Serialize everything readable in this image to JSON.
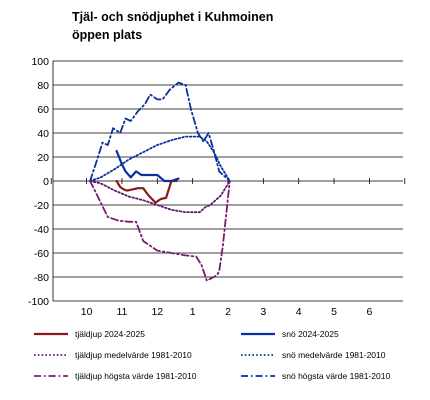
{
  "chart_data": {
    "type": "line",
    "title": [
      "Tjäl- och snödjuphet i Kuhmoinen",
      "öppen plats"
    ],
    "xlabel": "",
    "ylabel": "",
    "x_ticks": [
      "10",
      "11",
      "12",
      "1",
      "2",
      "3",
      "4",
      "5",
      "6"
    ],
    "ylim": [
      -100,
      100
    ],
    "y_ticks": [
      100,
      80,
      60,
      40,
      20,
      0,
      -20,
      -40,
      -60,
      -80,
      -100
    ],
    "grid": true,
    "legend_position": "bottom",
    "series": [
      {
        "name": "tjäldjup 2024-2025",
        "color": "#8B1A1A",
        "style": "solid",
        "x": [
          2.85,
          2.95,
          3.05,
          3.15,
          3.3,
          3.45,
          3.6,
          3.75,
          3.95,
          4.1,
          4.25,
          4.4,
          4.55
        ],
        "y": [
          0,
          -5,
          -7,
          -8,
          -7,
          -6,
          -6,
          -12,
          -18,
          -15,
          -14,
          0,
          0
        ]
      },
      {
        "name": "snö 2024-2025",
        "color": "#0a2fa0",
        "style": "solid",
        "x": [
          2.85,
          3.0,
          3.1,
          3.25,
          3.4,
          3.55,
          3.7,
          3.85,
          4.0,
          4.2,
          4.4,
          4.6
        ],
        "y": [
          25,
          14,
          8,
          3,
          8,
          5,
          5,
          5,
          5,
          0,
          0,
          2
        ]
      },
      {
        "name": "tjäldjup medelvärde 1981-2010",
        "color": "#5a1a6e",
        "style": "dotted",
        "x": [
          2.1,
          2.4,
          2.8,
          3.2,
          3.6,
          4.0,
          4.4,
          4.8,
          5.2,
          5.35,
          5.5,
          5.8,
          6.05
        ],
        "y": [
          0,
          -2,
          -8,
          -13,
          -16,
          -20,
          -24,
          -26,
          -26,
          -22,
          -20,
          -12,
          0
        ]
      },
      {
        "name": "snö medelvärde 1981-2010",
        "color": "#0a2fa0",
        "style": "dotted",
        "x": [
          2.1,
          2.4,
          2.8,
          3.2,
          3.6,
          4.0,
          4.4,
          4.8,
          5.2,
          5.4,
          5.6,
          5.8,
          6.05
        ],
        "y": [
          0,
          3,
          10,
          18,
          24,
          30,
          34,
          37,
          37,
          33,
          24,
          12,
          0
        ]
      },
      {
        "name": "tjäldjup högsta värde 1981-2010",
        "color": "#7a1a6e",
        "style": "dashdot",
        "x": [
          2.1,
          2.3,
          2.6,
          2.9,
          3.2,
          3.4,
          3.6,
          4.0,
          4.4,
          4.8,
          5.1,
          5.25,
          5.4,
          5.6,
          5.7,
          5.75,
          5.85,
          6.05
        ],
        "y": [
          0,
          -12,
          -30,
          -33,
          -34,
          -34,
          -50,
          -58,
          -60,
          -62,
          -63,
          -70,
          -83,
          -80,
          -78,
          -75,
          -55,
          0
        ]
      },
      {
        "name": "snö högsta värde 1981-2010",
        "color": "#0a2fa0",
        "style": "dashdot",
        "x": [
          2.1,
          2.3,
          2.45,
          2.6,
          2.75,
          2.95,
          3.1,
          3.25,
          3.45,
          3.65,
          3.8,
          4.0,
          4.15,
          4.35,
          4.6,
          4.8,
          4.95,
          5.15,
          5.3,
          5.45,
          5.6,
          5.75,
          6.05
        ],
        "y": [
          0,
          18,
          32,
          30,
          44,
          40,
          52,
          50,
          58,
          64,
          72,
          68,
          68,
          76,
          82,
          80,
          60,
          40,
          33,
          40,
          25,
          8,
          0
        ]
      }
    ]
  }
}
